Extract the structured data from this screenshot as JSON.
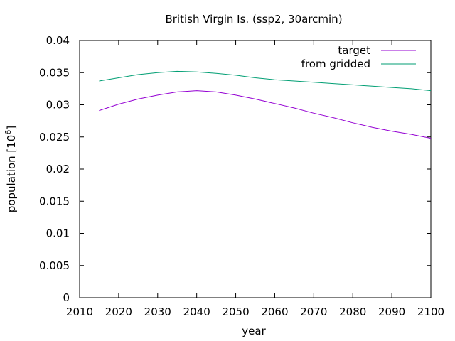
{
  "chart_data": {
    "type": "line",
    "title": "British Virgin Is. (ssp2, 30arcmin)",
    "xlabel": "year",
    "ylabel": "population [10",
    "ylabel_sup": "6",
    "ylabel_close": "]",
    "xlim": [
      2010,
      2100
    ],
    "ylim": [
      0,
      0.04
    ],
    "xticks": [
      {
        "value": 2010,
        "label": "2010"
      },
      {
        "value": 2020,
        "label": "2020"
      },
      {
        "value": 2030,
        "label": "2030"
      },
      {
        "value": 2040,
        "label": "2040"
      },
      {
        "value": 2050,
        "label": "2050"
      },
      {
        "value": 2060,
        "label": "2060"
      },
      {
        "value": 2070,
        "label": "2070"
      },
      {
        "value": 2080,
        "label": "2080"
      },
      {
        "value": 2090,
        "label": "2090"
      },
      {
        "value": 2100,
        "label": "2100"
      }
    ],
    "yticks": [
      {
        "value": 0,
        "label": "0"
      },
      {
        "value": 0.005,
        "label": "0.005"
      },
      {
        "value": 0.01,
        "label": "0.01"
      },
      {
        "value": 0.015,
        "label": "0.015"
      },
      {
        "value": 0.02,
        "label": "0.02"
      },
      {
        "value": 0.025,
        "label": "0.025"
      },
      {
        "value": 0.03,
        "label": "0.03"
      },
      {
        "value": 0.035,
        "label": "0.035"
      },
      {
        "value": 0.04,
        "label": "0.04"
      }
    ],
    "grid": false,
    "legend_position": "top-right",
    "series": [
      {
        "name": "target",
        "color": "#9400d3",
        "x": [
          2015,
          2020,
          2025,
          2030,
          2035,
          2040,
          2045,
          2050,
          2055,
          2060,
          2065,
          2070,
          2075,
          2080,
          2085,
          2090,
          2095,
          2100
        ],
        "y": [
          0.0291,
          0.0301,
          0.0309,
          0.0315,
          0.032,
          0.0322,
          0.032,
          0.0315,
          0.0309,
          0.0302,
          0.0295,
          0.0287,
          0.028,
          0.0272,
          0.0265,
          0.0259,
          0.0254,
          0.0248
        ]
      },
      {
        "name": "from gridded",
        "color": "#009e73",
        "x": [
          2015,
          2020,
          2025,
          2030,
          2035,
          2040,
          2045,
          2050,
          2055,
          2060,
          2065,
          2070,
          2075,
          2080,
          2085,
          2090,
          2095,
          2100
        ],
        "y": [
          0.0337,
          0.0342,
          0.0347,
          0.035,
          0.0352,
          0.0351,
          0.0349,
          0.0346,
          0.0342,
          0.0339,
          0.0337,
          0.0335,
          0.0333,
          0.0331,
          0.0329,
          0.0327,
          0.0325,
          0.0322
        ]
      }
    ]
  }
}
